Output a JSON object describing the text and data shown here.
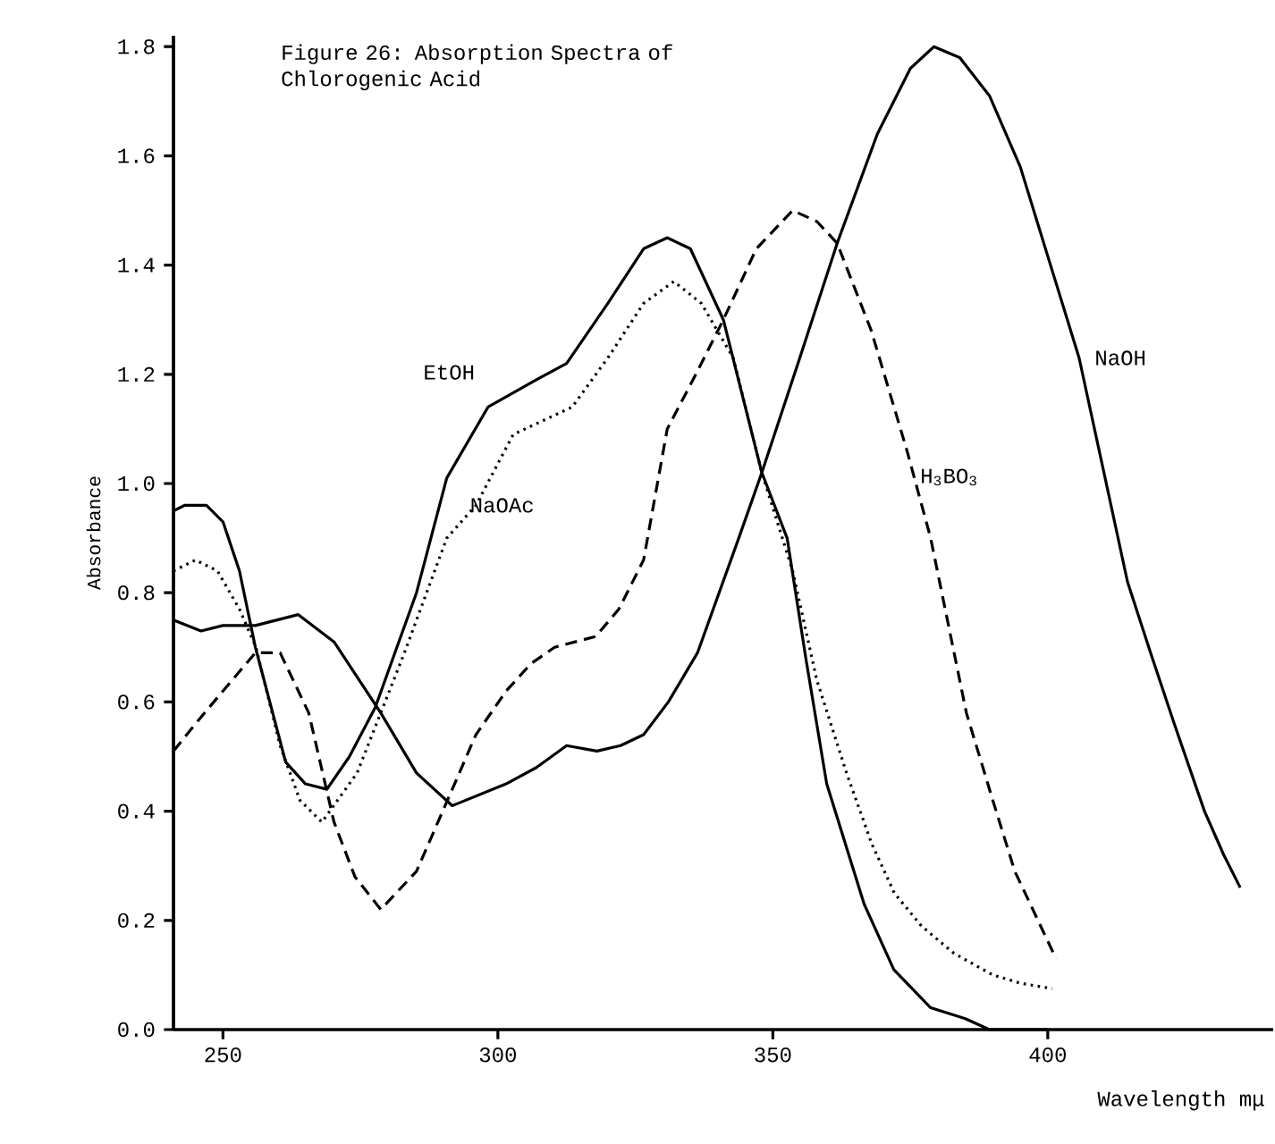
{
  "chart_data": {
    "type": "line",
    "title": "Figure 26: Absorption Spectra of Chlorogenic Acid",
    "xlabel": "Wavelength mμ",
    "ylabel": "Absorbance",
    "xlim": [
      241,
      441
    ],
    "ylim": [
      0,
      1.82
    ],
    "xticks": [
      250,
      300,
      350,
      400
    ],
    "yticks": [
      {
        "value": 0,
        "label": "0.0"
      },
      0.2,
      0.4,
      0.6,
      0.8,
      {
        "value": 1,
        "label": "1.0"
      },
      1.2,
      1.4,
      1.6,
      1.8
    ],
    "grid": false,
    "marker": "none",
    "series": [
      {
        "name": "EtOH",
        "color": "#000000",
        "line_style": "solid",
        "x": [
          241,
          243,
          247,
          250,
          253,
          255.9,
          261.4,
          265,
          268.9,
          273,
          277.7,
          285.2,
          290.7,
          298.2,
          307,
          312.5,
          320,
          326.5,
          330.8,
          335,
          341,
          344,
          348,
          352.6,
          356,
          359.8,
          366.6,
          372,
          378.7,
          385,
          389.4,
          395,
          400
        ],
        "values": [
          0.95,
          0.96,
          0.96,
          0.93,
          0.84,
          0.7,
          0.49,
          0.45,
          0.44,
          0.5,
          0.59,
          0.8,
          1.01,
          1.14,
          1.19,
          1.22,
          1.33,
          1.43,
          1.45,
          1.43,
          1.3,
          1.18,
          1.02,
          0.9,
          0.68,
          0.45,
          0.23,
          0.11,
          0.04,
          0.02,
          0.0,
          0.0,
          0.0
        ]
      },
      {
        "name": "NaOAc",
        "color": "#000000",
        "line_style": "dotted",
        "x": [
          241,
          245,
          249,
          253,
          256,
          260.4,
          264,
          268,
          274.4,
          283,
          290.7,
          296,
          302.8,
          313.5,
          320,
          326.5,
          332,
          337,
          342.8,
          348,
          353.6,
          358,
          363.4,
          368,
          372.1,
          377,
          382.9,
          390,
          395,
          400.8
        ],
        "values": [
          0.84,
          0.86,
          0.84,
          0.77,
          0.7,
          0.52,
          0.42,
          0.38,
          0.47,
          0.69,
          0.9,
          0.96,
          1.09,
          1.14,
          1.23,
          1.33,
          1.37,
          1.33,
          1.23,
          1.02,
          0.84,
          0.64,
          0.47,
          0.34,
          0.25,
          0.19,
          0.14,
          0.1,
          0.085,
          0.075
        ]
      },
      {
        "name": "H$_{3}$BO$_{3}$",
        "color": "#000000",
        "line_style": "dashed",
        "x": [
          241,
          245,
          250,
          255.9,
          260.4,
          265.6,
          270.2,
          274,
          278.7,
          285.2,
          291.7,
          296,
          301.5,
          306,
          310.3,
          317.8,
          322,
          326.5,
          330.8,
          336,
          341,
          347,
          353.6,
          358,
          361.7,
          367.9,
          374.4,
          378.7,
          385.2,
          390,
          394,
          401.5
        ],
        "values": [
          0.51,
          0.56,
          0.62,
          0.69,
          0.69,
          0.58,
          0.38,
          0.28,
          0.22,
          0.29,
          0.44,
          0.54,
          0.62,
          0.67,
          0.7,
          0.72,
          0.77,
          0.86,
          1.1,
          1.2,
          1.3,
          1.43,
          1.5,
          1.48,
          1.44,
          1.28,
          1.06,
          0.9,
          0.58,
          0.42,
          0.29,
          0.13
        ]
      },
      {
        "name": "NaOH",
        "color": "#000000",
        "line_style": "solid",
        "x": [
          241,
          246,
          250,
          255.9,
          263.7,
          270.2,
          278.7,
          285.2,
          291.7,
          301.5,
          307,
          312.5,
          318,
          322.3,
          326.5,
          331,
          336.3,
          343.8,
          348,
          354.9,
          361.7,
          369,
          375,
          379.3,
          384,
          389.4,
          395,
          400.5,
          405.7,
          410,
          414.5,
          418.7,
          423,
          428.5,
          432,
          435
        ],
        "values": [
          0.75,
          0.73,
          0.74,
          0.74,
          0.76,
          0.71,
          0.58,
          0.47,
          0.41,
          0.45,
          0.48,
          0.52,
          0.51,
          0.52,
          0.54,
          0.6,
          0.69,
          0.9,
          1.02,
          1.23,
          1.44,
          1.64,
          1.76,
          1.8,
          1.78,
          1.71,
          1.58,
          1.4,
          1.23,
          1.03,
          0.82,
          0.69,
          0.56,
          0.4,
          0.32,
          0.26
        ]
      }
    ]
  }
}
